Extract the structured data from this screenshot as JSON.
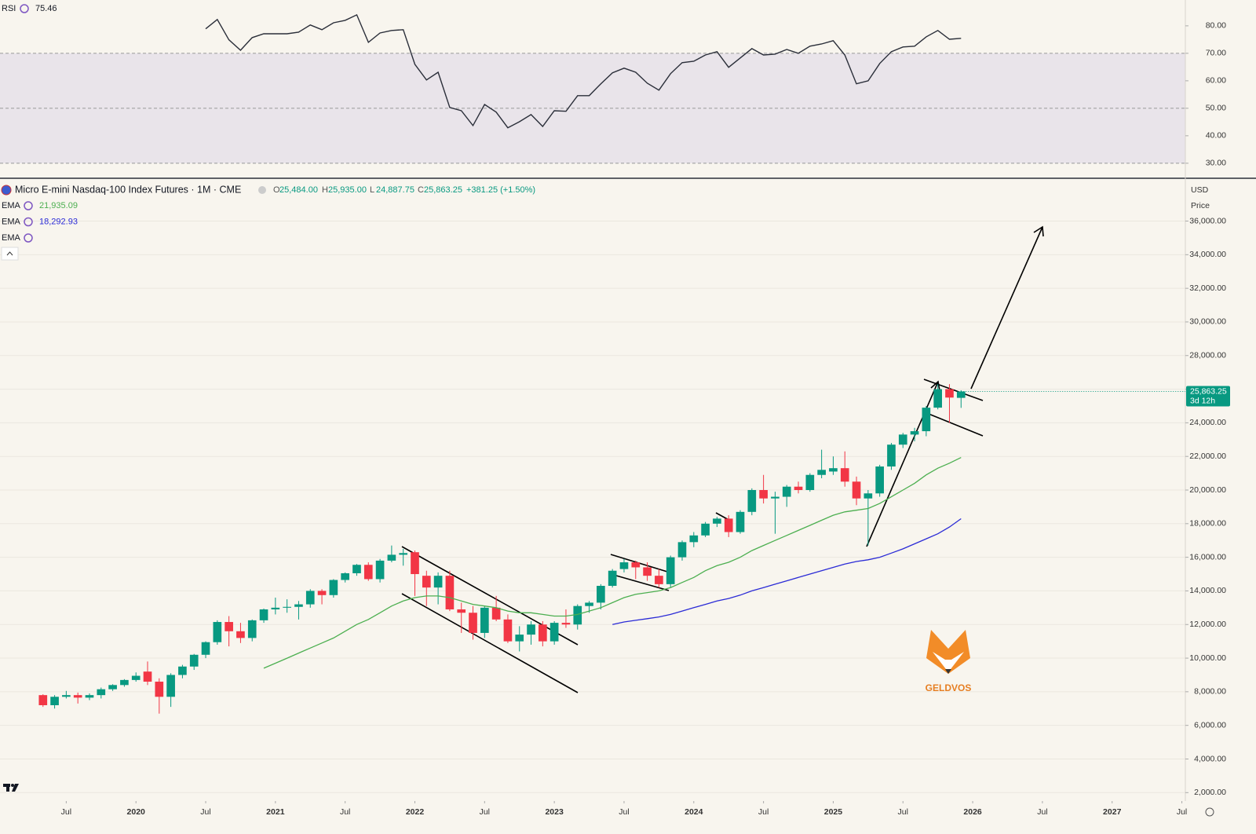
{
  "chart_data": [
    {
      "type": "line",
      "title": "RSI",
      "series": [
        {
          "name": "RSI",
          "color": "#2a2e39",
          "value_label": "75.46",
          "values": [
            null,
            null,
            null,
            null,
            null,
            null,
            null,
            null,
            null,
            null,
            null,
            null,
            null,
            null,
            78.9,
            82.3,
            74.9,
            71.1,
            75.7,
            77.1,
            77.1,
            77.1,
            77.7,
            80.3,
            78.6,
            81.1,
            82,
            84,
            74,
            77.4,
            78.3,
            78.6,
            66,
            60.3,
            63.1,
            50.3,
            49.1,
            43.7,
            51.4,
            48.6,
            42.9,
            45.1,
            47.7,
            43.4,
            49.1,
            48.9,
            54.6,
            54.6,
            58.9,
            62.9,
            64.6,
            63.1,
            59.1,
            56.6,
            62.6,
            66.6,
            67.1,
            69.4,
            70.6,
            64.9,
            68.3,
            71.7,
            69.4,
            69.7,
            71.4,
            70,
            72.6,
            73.4,
            74.6,
            69.4,
            58.9,
            60,
            66.3,
            70.6,
            72.3,
            72.6,
            76,
            78.3,
            75.1,
            75.46
          ]
        }
      ],
      "bands": [
        30,
        50,
        70
      ],
      "band_color": "#e9e4ea",
      "xlim": [
        -3.7,
        98.3
      ],
      "ylim": [
        25.1,
        89.4
      ],
      "yticks": [
        {
          "value": 30,
          "label": "30.00"
        },
        {
          "value": 40,
          "label": "40.00"
        },
        {
          "value": 50,
          "label": "50.00"
        },
        {
          "value": 60,
          "label": "60.00"
        },
        {
          "value": 70,
          "label": "70.00"
        },
        {
          "value": 80,
          "label": "80.00"
        }
      ]
    },
    {
      "type": "candlestick",
      "title": "Micro E-mini Nasdaq-100 Index Futures · 1M · CME",
      "ohlc_legend": [
        {
          "label": "O",
          "value": "25,484.00"
        },
        {
          "label": "H",
          "value": "25,935.00"
        },
        {
          "label": "L",
          "value": "24,887.75"
        },
        {
          "label": "C",
          "value": "25,863.25"
        }
      ],
      "change": "+381.25 (+1.50%)",
      "up_color": "#089981",
      "down_color": "#f23645",
      "open": [
        7800,
        7200,
        7700,
        7800,
        7650,
        7800,
        8150,
        8400,
        8700,
        9200,
        8600,
        7700,
        9000,
        9500,
        10200,
        10950,
        12150,
        11600,
        11200,
        12250,
        12900,
        13000,
        13050,
        13200,
        14000,
        13750,
        14650,
        15050,
        15550,
        14700,
        15800,
        16150,
        16300,
        14900,
        14200,
        14900,
        12900,
        12700,
        11500,
        13000,
        12300,
        11000,
        11400,
        12000,
        11000,
        12100,
        12000,
        13100,
        13300,
        14300,
        15300,
        15700,
        15400,
        14900,
        14400,
        16000,
        16900,
        17300,
        18000,
        18300,
        17500,
        18700,
        20000,
        19500,
        19600,
        20200,
        20000,
        20900,
        21100,
        21300,
        20500,
        19500,
        19800,
        21400,
        22700,
        23300,
        23500,
        24900,
        26000,
        25484
      ],
      "high": [
        7850,
        7800,
        8050,
        7950,
        7900,
        8250,
        8450,
        8750,
        9150,
        9800,
        8800,
        9100,
        9600,
        10250,
        11000,
        12250,
        12500,
        12100,
        12300,
        12950,
        13600,
        13500,
        13400,
        14100,
        14100,
        14700,
        15100,
        15600,
        15700,
        15900,
        16700,
        16500,
        16400,
        15200,
        15100,
        15200,
        13300,
        13100,
        13100,
        13700,
        12600,
        11900,
        12200,
        12200,
        12200,
        12900,
        13200,
        13400,
        14400,
        15300,
        15900,
        15800,
        15700,
        15300,
        16100,
        17000,
        17500,
        18100,
        18400,
        18500,
        18800,
        20100,
        20900,
        19900,
        20300,
        20500,
        21000,
        22400,
        22000,
        22300,
        20800,
        20000,
        21500,
        22800,
        23400,
        23700,
        25000,
        26300,
        26300,
        25935
      ],
      "low": [
        7100,
        7000,
        7600,
        7300,
        7500,
        7600,
        8050,
        8300,
        8600,
        8400,
        6700,
        7100,
        8800,
        9300,
        10000,
        10800,
        10700,
        10900,
        11000,
        12100,
        12600,
        12700,
        12300,
        13000,
        13200,
        13600,
        14500,
        14900,
        14600,
        14500,
        15700,
        15500,
        13700,
        13100,
        13200,
        12800,
        11500,
        11100,
        11200,
        12200,
        10900,
        10400,
        10800,
        10700,
        10800,
        11800,
        11700,
        12700,
        12900,
        14200,
        15100,
        14700,
        14600,
        14200,
        14200,
        15800,
        16600,
        17200,
        17800,
        17200,
        17400,
        18500,
        19200,
        17400,
        19000,
        19800,
        19900,
        20700,
        20900,
        20200,
        19100,
        16700,
        19600,
        21200,
        22500,
        22900,
        23200,
        24800,
        24000,
        24887.75
      ],
      "close": [
        7200,
        7700,
        7800,
        7650,
        7800,
        8150,
        8400,
        8700,
        8950,
        8600,
        7700,
        9000,
        9500,
        10200,
        10950,
        12150,
        11600,
        11200,
        12250,
        12900,
        13000,
        13050,
        13200,
        14000,
        13750,
        14650,
        15050,
        15550,
        14700,
        15800,
        16150,
        16250,
        15000,
        14200,
        14900,
        12900,
        12700,
        11500,
        13000,
        12300,
        11000,
        11400,
        12000,
        11000,
        12100,
        12000,
        13100,
        13300,
        14300,
        15200,
        15700,
        15400,
        14900,
        14400,
        16000,
        16900,
        17300,
        18000,
        18300,
        17500,
        18700,
        20000,
        19500,
        19600,
        20200,
        20000,
        20900,
        21200,
        21300,
        20500,
        19500,
        19800,
        21400,
        22700,
        23300,
        23500,
        24900,
        26000,
        25500,
        25863.25
      ],
      "series": [
        {
          "name": "EMA",
          "color": "#4caf50",
          "value_label": "21,935.09",
          "values": [
            null,
            null,
            null,
            null,
            null,
            null,
            null,
            null,
            null,
            null,
            null,
            null,
            null,
            null,
            null,
            null,
            null,
            null,
            null,
            9400,
            9700,
            10000,
            10300,
            10600,
            10900,
            11200,
            11600,
            12000,
            12300,
            12700,
            13100,
            13400,
            13600,
            13700,
            13700,
            13600,
            13400,
            13200,
            13100,
            13000,
            12800,
            12700,
            12700,
            12600,
            12500,
            12500,
            12600,
            12800,
            13000,
            13300,
            13600,
            13800,
            13900,
            14000,
            14200,
            14500,
            14800,
            15200,
            15500,
            15700,
            16000,
            16400,
            16700,
            17000,
            17300,
            17600,
            17900,
            18200,
            18500,
            18700,
            18800,
            18900,
            19200,
            19600,
            20000,
            20400,
            20900,
            21300,
            21600,
            21935.09
          ]
        },
        {
          "name": "EMA",
          "color": "#2b2bd6",
          "value_label": "18,292.93",
          "values": [
            null,
            null,
            null,
            null,
            null,
            null,
            null,
            null,
            null,
            null,
            null,
            null,
            null,
            null,
            null,
            null,
            null,
            null,
            null,
            null,
            null,
            null,
            null,
            null,
            null,
            null,
            null,
            null,
            null,
            null,
            null,
            null,
            null,
            null,
            null,
            null,
            null,
            null,
            null,
            null,
            null,
            null,
            null,
            null,
            null,
            null,
            null,
            null,
            null,
            12000,
            12150,
            12250,
            12350,
            12450,
            12600,
            12800,
            13000,
            13200,
            13400,
            13550,
            13750,
            14000,
            14200,
            14400,
            14600,
            14800,
            15000,
            15200,
            15400,
            15600,
            15750,
            15850,
            16000,
            16250,
            16500,
            16800,
            17100,
            17400,
            17800,
            18292.93
          ]
        }
      ],
      "hidden_indicator": "EMA",
      "last_price_label": "25,863.25",
      "countdown": "3d 12h",
      "currency": "USD",
      "scale_mode": "Price",
      "grid": true,
      "xlim": [
        -3.7,
        98.3
      ],
      "ylim": [
        1500,
        38500
      ],
      "xticks": [
        {
          "value": 2,
          "label": "Jul"
        },
        {
          "value": 8,
          "label": "2020"
        },
        {
          "value": 14,
          "label": "Jul"
        },
        {
          "value": 20,
          "label": "2021"
        },
        {
          "value": 26,
          "label": "Jul"
        },
        {
          "value": 32,
          "label": "2022"
        },
        {
          "value": 38,
          "label": "Jul"
        },
        {
          "value": 44,
          "label": "2023"
        },
        {
          "value": 50,
          "label": "Jul"
        },
        {
          "value": 56,
          "label": "2024"
        },
        {
          "value": 62,
          "label": "Jul"
        },
        {
          "value": 68,
          "label": "2025"
        },
        {
          "value": 74,
          "label": "Jul"
        },
        {
          "value": 80,
          "label": "2026"
        },
        {
          "value": 86,
          "label": "Jul"
        },
        {
          "value": 92,
          "label": "2027"
        },
        {
          "value": 98,
          "label": "Jul"
        }
      ],
      "yticks": [
        {
          "value": 2000,
          "label": "2,000.00"
        },
        {
          "value": 4000,
          "label": "4,000.00"
        },
        {
          "value": 6000,
          "label": "6,000.00"
        },
        {
          "value": 8000,
          "label": "8,000.00"
        },
        {
          "value": 10000,
          "label": "10,000.00"
        },
        {
          "value": 12000,
          "label": "12,000.00"
        },
        {
          "value": 14000,
          "label": "14,000.00"
        },
        {
          "value": 16000,
          "label": "16,000.00"
        },
        {
          "value": 18000,
          "label": "18,000.00"
        },
        {
          "value": 20000,
          "label": "20,000.00"
        },
        {
          "value": 22000,
          "label": "22,000.00"
        },
        {
          "value": 24000,
          "label": "24,000.00"
        },
        {
          "value": 26000,
          "label": "26,000.00"
        },
        {
          "value": 28000,
          "label": "28,000.00"
        },
        {
          "value": 30000,
          "label": "30,000.00"
        },
        {
          "value": 32000,
          "label": "32,000.00"
        },
        {
          "value": 34000,
          "label": "34,000.00"
        },
        {
          "value": 36000,
          "label": "36,000.00"
        }
      ]
    }
  ],
  "watermark": "GELDVOS"
}
